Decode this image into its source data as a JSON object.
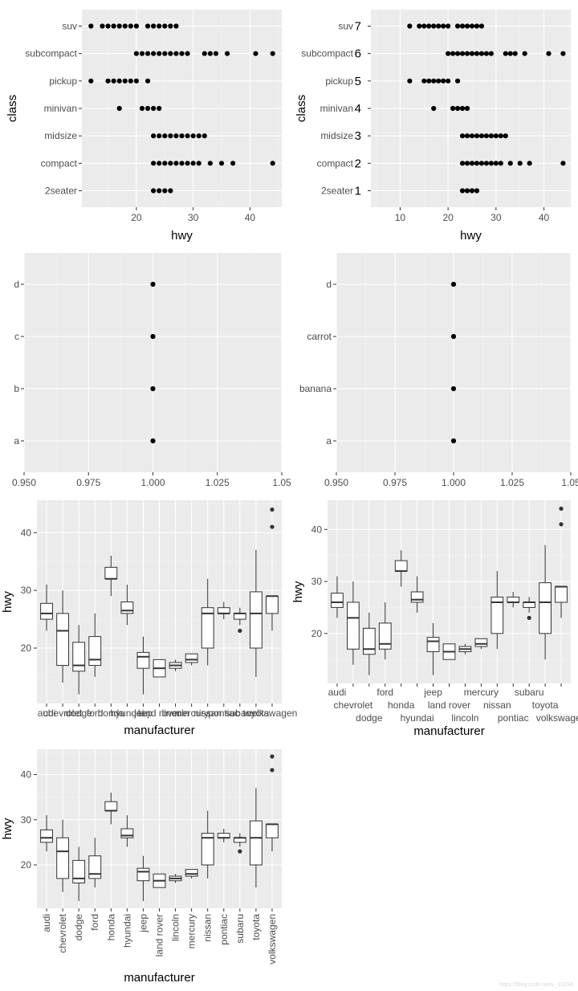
{
  "colors": {
    "panel": "#EBEBEB",
    "grid_major": "#FFFFFF",
    "grid_minor": "#F4F4F4",
    "text": "#4D4D4D",
    "title": "#000000",
    "point": "#000000",
    "box_line": "#333333",
    "box_fill": "#FFFFFF"
  },
  "watermark": "https://blog.csdn.net/u_10294",
  "chart_data": [
    {
      "id": "p1",
      "type": "scatter",
      "xlabel": "hwy",
      "ylabel": "class",
      "xlim": [
        10.4,
        45.6
      ],
      "xticks": [
        20,
        30,
        40
      ],
      "categories": [
        "2seater",
        "compact",
        "midsize",
        "minivan",
        "pickup",
        "subcompact",
        "suv"
      ],
      "points": {
        "2seater": [
          23,
          24,
          25,
          26
        ],
        "compact": [
          23,
          24,
          25,
          26,
          27,
          28,
          29,
          30,
          31,
          33,
          35,
          37,
          44
        ],
        "midsize": [
          23,
          24,
          25,
          26,
          27,
          28,
          29,
          30,
          31,
          32
        ],
        "minivan": [
          17,
          21,
          22,
          23,
          24
        ],
        "pickup": [
          12,
          15,
          16,
          17,
          18,
          19,
          20,
          22
        ],
        "subcompact": [
          20,
          21,
          22,
          23,
          24,
          25,
          26,
          27,
          28,
          29,
          32,
          33,
          34,
          36,
          41,
          44
        ],
        "suv": [
          12,
          14,
          15,
          16,
          17,
          18,
          19,
          20,
          22,
          23,
          24,
          25,
          26,
          27
        ]
      }
    },
    {
      "id": "p2",
      "type": "scatter",
      "xlabel": "hwy",
      "ylabel": "class",
      "xlim": [
        3.9,
        45.6
      ],
      "xticks": [
        10,
        20,
        30,
        40
      ],
      "categories": [
        "2seater",
        "compact",
        "midsize",
        "minivan",
        "pickup",
        "subcompact",
        "suv"
      ],
      "category_numbers": [
        "1",
        "2",
        "3",
        "4",
        "5",
        "6",
        "7"
      ],
      "points": {
        "2seater": [
          23,
          24,
          25,
          26
        ],
        "compact": [
          23,
          24,
          25,
          26,
          27,
          28,
          29,
          30,
          31,
          33,
          35,
          37,
          44
        ],
        "midsize": [
          23,
          24,
          25,
          26,
          27,
          28,
          29,
          30,
          31,
          32
        ],
        "minivan": [
          17,
          21,
          22,
          23,
          24
        ],
        "pickup": [
          12,
          15,
          16,
          17,
          18,
          19,
          20,
          22
        ],
        "subcompact": [
          20,
          21,
          22,
          23,
          24,
          25,
          26,
          27,
          28,
          29,
          32,
          33,
          34,
          36,
          41,
          44
        ],
        "suv": [
          12,
          14,
          15,
          16,
          17,
          18,
          19,
          20,
          22,
          23,
          24,
          25,
          26,
          27
        ]
      }
    },
    {
      "id": "p3",
      "type": "scatter",
      "xlabel": "",
      "ylabel": "",
      "xlim": [
        0.95,
        1.05
      ],
      "xticks": [
        0.95,
        0.975,
        1.0,
        1.025,
        1.05
      ],
      "xtick_labels": [
        "0.950",
        "0.975",
        "1.000",
        "1.025",
        "1.05"
      ],
      "categories": [
        "a",
        "b",
        "c",
        "d"
      ],
      "x_values": [
        1.0,
        1.0,
        1.0,
        1.0
      ]
    },
    {
      "id": "p4",
      "type": "scatter",
      "xlabel": "",
      "ylabel": "",
      "xlim": [
        0.95,
        1.05
      ],
      "xticks": [
        0.95,
        0.975,
        1.0,
        1.025,
        1.05
      ],
      "xtick_labels": [
        "0.950",
        "0.975",
        "1.000",
        "1.025",
        "1.05"
      ],
      "categories": [
        "a",
        "banana",
        "carrot",
        "d"
      ],
      "x_values": [
        1.0,
        1.0,
        1.0,
        1.0
      ]
    },
    {
      "id": "p5",
      "type": "box",
      "xlabel": "manufacturer",
      "ylabel": "hwy",
      "ylim": [
        10.4,
        45.6
      ],
      "yticks": [
        20,
        30,
        40
      ],
      "label_style": "overlap",
      "categories": [
        "audi",
        "chevrolet",
        "dodge",
        "ford",
        "honda",
        "hyundai",
        "jeep",
        "land rover",
        "lincoln",
        "mercury",
        "nissan",
        "pontiac",
        "subaru",
        "toyota",
        "volkswagen"
      ]
    },
    {
      "id": "p6",
      "type": "box",
      "xlabel": "manufacturer",
      "ylabel": "hwy",
      "ylim": [
        10.4,
        45.6
      ],
      "yticks": [
        20,
        30,
        40
      ],
      "label_style": "dodge",
      "categories": [
        "audi",
        "chevrolet",
        "dodge",
        "ford",
        "honda",
        "hyundai",
        "jeep",
        "land rover",
        "lincoln",
        "mercury",
        "nissan",
        "pontiac",
        "subaru",
        "toyota",
        "volkswagen"
      ]
    },
    {
      "id": "p7",
      "type": "box",
      "xlabel": "manufacturer",
      "ylabel": "hwy",
      "ylim": [
        10.4,
        45.6
      ],
      "yticks": [
        20,
        30,
        40
      ],
      "label_style": "rotate90",
      "categories": [
        "audi",
        "chevrolet",
        "dodge",
        "ford",
        "honda",
        "hyundai",
        "jeep",
        "land rover",
        "lincoln",
        "mercury",
        "nissan",
        "pontiac",
        "subaru",
        "toyota",
        "volkswagen"
      ]
    }
  ],
  "box_stats": [
    {
      "name": "audi",
      "min": 23,
      "q1": 25,
      "median": 26,
      "q3": 27.75,
      "max": 31,
      "outliers": []
    },
    {
      "name": "chevrolet",
      "min": 14,
      "q1": 17,
      "median": 23,
      "q3": 26,
      "max": 30,
      "outliers": []
    },
    {
      "name": "dodge",
      "min": 12,
      "q1": 16,
      "median": 17,
      "q3": 21,
      "max": 24,
      "outliers": []
    },
    {
      "name": "ford",
      "min": 15,
      "q1": 17,
      "median": 18,
      "q3": 22,
      "max": 26,
      "outliers": []
    },
    {
      "name": "honda",
      "min": 29,
      "q1": 32,
      "median": 32,
      "q3": 34,
      "max": 36,
      "outliers": []
    },
    {
      "name": "hyundai",
      "min": 24,
      "q1": 26,
      "median": 26.5,
      "q3": 28,
      "max": 31,
      "outliers": []
    },
    {
      "name": "jeep",
      "min": 12,
      "q1": 16.5,
      "median": 18.5,
      "q3": 19.25,
      "max": 22,
      "outliers": []
    },
    {
      "name": "land rover",
      "min": 15,
      "q1": 15,
      "median": 16.5,
      "q3": 18,
      "max": 18,
      "outliers": []
    },
    {
      "name": "lincoln",
      "min": 16,
      "q1": 16.5,
      "median": 17,
      "q3": 17.5,
      "max": 18,
      "outliers": []
    },
    {
      "name": "mercury",
      "min": 17,
      "q1": 17.5,
      "median": 18,
      "q3": 19,
      "max": 19,
      "outliers": []
    },
    {
      "name": "nissan",
      "min": 17,
      "q1": 20,
      "median": 26,
      "q3": 27,
      "max": 32,
      "outliers": []
    },
    {
      "name": "pontiac",
      "min": 25,
      "q1": 26,
      "median": 26,
      "q3": 27,
      "max": 28,
      "outliers": []
    },
    {
      "name": "subaru",
      "min": 24,
      "q1": 25,
      "median": 26,
      "q3": 26,
      "max": 27,
      "outliers": [
        23
      ]
    },
    {
      "name": "toyota",
      "min": 15,
      "q1": 20,
      "median": 26,
      "q3": 29.75,
      "max": 37,
      "outliers": []
    },
    {
      "name": "volkswagen",
      "min": 23,
      "q1": 26,
      "median": 29,
      "q3": 29,
      "max": 29,
      "outliers": [
        41,
        44
      ]
    }
  ]
}
